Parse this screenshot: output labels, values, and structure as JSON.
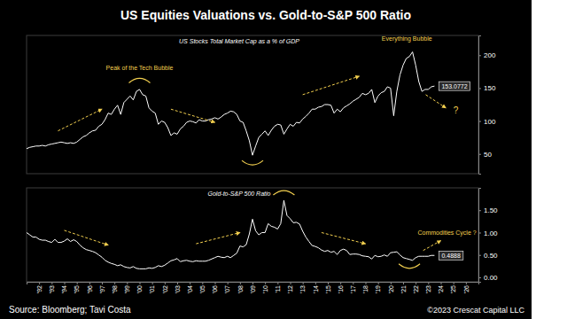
{
  "title": "US Equities Valuations vs. Gold-to-S&P 500 Ratio",
  "source": "Source: Bloomberg; Tavi Costa",
  "copyright": "©2023 Crescat Capital LLC",
  "chart_data": [
    {
      "type": "line",
      "title": "US Stocks Total Market Cap as a % of GDP",
      "x": [
        1991,
        1991.25,
        1991.5,
        1991.75,
        1992,
        1992.25,
        1992.5,
        1992.75,
        1993,
        1993.25,
        1993.5,
        1993.75,
        1994,
        1994.25,
        1994.5,
        1994.75,
        1995,
        1995.25,
        1995.5,
        1995.75,
        1996,
        1996.25,
        1996.5,
        1996.75,
        1997,
        1997.25,
        1997.5,
        1997.75,
        1998,
        1998.25,
        1998.5,
        1998.75,
        1999,
        1999.25,
        1999.5,
        1999.75,
        2000,
        2000.25,
        2000.5,
        2000.75,
        2001,
        2001.25,
        2001.5,
        2001.75,
        2002,
        2002.25,
        2002.5,
        2002.75,
        2003,
        2003.25,
        2003.5,
        2003.75,
        2004,
        2004.25,
        2004.5,
        2004.75,
        2005,
        2005.25,
        2005.5,
        2005.75,
        2006,
        2006.25,
        2006.5,
        2006.75,
        2007,
        2007.25,
        2007.5,
        2007.75,
        2008,
        2008.25,
        2008.5,
        2008.75,
        2009,
        2009.25,
        2009.5,
        2009.75,
        2010,
        2010.25,
        2010.5,
        2010.75,
        2011,
        2011.25,
        2011.5,
        2011.75,
        2012,
        2012.25,
        2012.5,
        2012.75,
        2013,
        2013.25,
        2013.5,
        2013.75,
        2014,
        2014.25,
        2014.5,
        2014.75,
        2015,
        2015.25,
        2015.5,
        2015.75,
        2016,
        2016.25,
        2016.5,
        2016.75,
        2017,
        2017.25,
        2017.5,
        2017.75,
        2018,
        2018.25,
        2018.5,
        2018.75,
        2019,
        2019.25,
        2019.5,
        2019.75,
        2020,
        2020.25,
        2020.5,
        2020.75,
        2021,
        2021.25,
        2021.5,
        2021.75,
        2022,
        2022.25,
        2022.5,
        2022.75,
        2023,
        2023.25,
        2023.5
      ],
      "series": [
        {
          "name": "US Stocks Total Market Cap as a % of GDP",
          "color": "#ffffff",
          "values": [
            58,
            60,
            61,
            62,
            62,
            63,
            62,
            64,
            65,
            66,
            67,
            68,
            67,
            66,
            67,
            66,
            68,
            72,
            76,
            78,
            82,
            85,
            86,
            92,
            95,
            102,
            112,
            110,
            118,
            124,
            110,
            128,
            133,
            138,
            132,
            145,
            148,
            140,
            138,
            120,
            115,
            112,
            95,
            100,
            98,
            90,
            78,
            82,
            80,
            88,
            92,
            98,
            100,
            99,
            97,
            102,
            100,
            100,
            102,
            103,
            105,
            103,
            106,
            110,
            112,
            115,
            114,
            110,
            100,
            98,
            85,
            70,
            48,
            62,
            75,
            80,
            85,
            78,
            86,
            92,
            95,
            94,
            80,
            88,
            95,
            92,
            98,
            97,
            103,
            107,
            112,
            118,
            118,
            121,
            122,
            125,
            125,
            124,
            112,
            118,
            114,
            120,
            123,
            126,
            130,
            133,
            136,
            142,
            140,
            142,
            148,
            128,
            138,
            143,
            145,
            152,
            150,
            108,
            145,
            170,
            185,
            195,
            198,
            205,
            185,
            160,
            145,
            148,
            148,
            152,
            153.0772
          ]
        }
      ],
      "last_value": 153.0772,
      "xlim": [
        1991,
        2027
      ],
      "ylim": [
        20,
        230
      ],
      "yticks": [
        50,
        100,
        150,
        200
      ],
      "grid": false,
      "tick_labels": "y",
      "annotations": [
        "Peak of the Tech Bubble",
        "Everything Bubble",
        "?"
      ]
    },
    {
      "type": "line",
      "title": "Gold-to-S&P 500 Ratio",
      "x": [
        1991,
        1991.25,
        1991.5,
        1991.75,
        1992,
        1992.25,
        1992.5,
        1992.75,
        1993,
        1993.25,
        1993.5,
        1993.75,
        1994,
        1994.25,
        1994.5,
        1994.75,
        1995,
        1995.25,
        1995.5,
        1995.75,
        1996,
        1996.25,
        1996.5,
        1996.75,
        1997,
        1997.25,
        1997.5,
        1997.75,
        1998,
        1998.25,
        1998.5,
        1998.75,
        1999,
        1999.25,
        1999.5,
        1999.75,
        2000,
        2000.25,
        2000.5,
        2000.75,
        2001,
        2001.25,
        2001.5,
        2001.75,
        2002,
        2002.25,
        2002.5,
        2002.75,
        2003,
        2003.25,
        2003.5,
        2003.75,
        2004,
        2004.25,
        2004.5,
        2004.75,
        2005,
        2005.25,
        2005.5,
        2005.75,
        2006,
        2006.25,
        2006.5,
        2006.75,
        2007,
        2007.25,
        2007.5,
        2007.75,
        2008,
        2008.25,
        2008.5,
        2008.75,
        2009,
        2009.25,
        2009.5,
        2009.75,
        2010,
        2010.25,
        2010.5,
        2010.75,
        2011,
        2011.25,
        2011.5,
        2011.75,
        2012,
        2012.25,
        2012.5,
        2012.75,
        2013,
        2013.25,
        2013.5,
        2013.75,
        2014,
        2014.25,
        2014.5,
        2014.75,
        2015,
        2015.25,
        2015.5,
        2015.75,
        2016,
        2016.25,
        2016.5,
        2016.75,
        2017,
        2017.25,
        2017.5,
        2017.75,
        2018,
        2018.25,
        2018.5,
        2018.75,
        2019,
        2019.25,
        2019.5,
        2019.75,
        2020,
        2020.25,
        2020.5,
        2020.75,
        2021,
        2021.25,
        2021.5,
        2021.75,
        2022,
        2022.25,
        2022.5,
        2022.75,
        2023,
        2023.25,
        2023.5
      ],
      "series": [
        {
          "name": "Gold-to-S&P 500 Ratio",
          "color": "#ffffff",
          "values": [
            1.0,
            0.95,
            0.9,
            0.9,
            0.85,
            0.83,
            0.83,
            0.8,
            0.78,
            0.85,
            0.78,
            0.78,
            0.81,
            0.86,
            0.8,
            0.84,
            0.8,
            0.72,
            0.66,
            0.62,
            0.6,
            0.58,
            0.55,
            0.5,
            0.45,
            0.38,
            0.34,
            0.31,
            0.29,
            0.26,
            0.28,
            0.24,
            0.22,
            0.21,
            0.24,
            0.2,
            0.19,
            0.19,
            0.19,
            0.21,
            0.2,
            0.22,
            0.26,
            0.24,
            0.27,
            0.32,
            0.37,
            0.39,
            0.42,
            0.35,
            0.37,
            0.38,
            0.36,
            0.35,
            0.37,
            0.36,
            0.36,
            0.36,
            0.38,
            0.41,
            0.44,
            0.47,
            0.45,
            0.44,
            0.47,
            0.44,
            0.49,
            0.54,
            0.7,
            0.68,
            0.73,
            0.97,
            1.3,
            1.04,
            0.95,
            1.0,
            1.0,
            1.2,
            1.14,
            1.12,
            1.08,
            1.2,
            1.72,
            1.38,
            1.31,
            1.22,
            1.23,
            1.19,
            1.03,
            0.9,
            0.8,
            0.71,
            0.69,
            0.66,
            0.61,
            0.58,
            0.6,
            0.56,
            0.58,
            0.51,
            0.6,
            0.63,
            0.6,
            0.51,
            0.52,
            0.52,
            0.51,
            0.48,
            0.47,
            0.46,
            0.41,
            0.49,
            0.46,
            0.47,
            0.5,
            0.47,
            0.55,
            0.56,
            0.57,
            0.5,
            0.44,
            0.42,
            0.4,
            0.38,
            0.44,
            0.47,
            0.47,
            0.47,
            0.47,
            0.49,
            0.4888
          ]
        }
      ],
      "last_value": 0.4888,
      "xlim": [
        1991,
        2027
      ],
      "ylim": [
        -0.1,
        2.0
      ],
      "xticks": [
        {
          "value": 1992,
          "label": "'92"
        },
        {
          "value": 1993,
          "label": "'93"
        },
        {
          "value": 1994,
          "label": "'94"
        },
        {
          "value": 1995,
          "label": "'95"
        },
        {
          "value": 1996,
          "label": "'96"
        },
        {
          "value": 1997,
          "label": "'97"
        },
        {
          "value": 1998,
          "label": "'98"
        },
        {
          "value": 1999,
          "label": "'99"
        },
        {
          "value": 2000,
          "label": "'00"
        },
        {
          "value": 2001,
          "label": "'01"
        },
        {
          "value": 2002,
          "label": "'02"
        },
        {
          "value": 2003,
          "label": "'03"
        },
        {
          "value": 2004,
          "label": "'04"
        },
        {
          "value": 2005,
          "label": "'05"
        },
        {
          "value": 2006,
          "label": "'06"
        },
        {
          "value": 2007,
          "label": "'07"
        },
        {
          "value": 2008,
          "label": "'08"
        },
        {
          "value": 2009,
          "label": "'09"
        },
        {
          "value": 2010,
          "label": "'10"
        },
        {
          "value": 2011,
          "label": "'11"
        },
        {
          "value": 2012,
          "label": "'12"
        },
        {
          "value": 2013,
          "label": "'13"
        },
        {
          "value": 2014,
          "label": "'14"
        },
        {
          "value": 2015,
          "label": "'15"
        },
        {
          "value": 2016,
          "label": "'16"
        },
        {
          "value": 2017,
          "label": "'17"
        },
        {
          "value": 2018,
          "label": "'18"
        },
        {
          "value": 2019,
          "label": "'19"
        },
        {
          "value": 2020,
          "label": "'20"
        },
        {
          "value": 2021,
          "label": "'21"
        },
        {
          "value": 2022,
          "label": "'22"
        },
        {
          "value": 2023,
          "label": "'23"
        },
        {
          "value": 2024,
          "label": "'24"
        },
        {
          "value": 2025,
          "label": "'25"
        },
        {
          "value": 2026,
          "label": "'26"
        }
      ],
      "yticks": [
        {
          "value": 0,
          "label": "0.00"
        },
        {
          "value": 0.5,
          "label": "0.50"
        },
        {
          "value": 1,
          "label": "1.00"
        },
        {
          "value": 1.5,
          "label": "1.50"
        }
      ],
      "grid": false,
      "annotations": [
        "Commodities Cycle ?"
      ]
    }
  ]
}
